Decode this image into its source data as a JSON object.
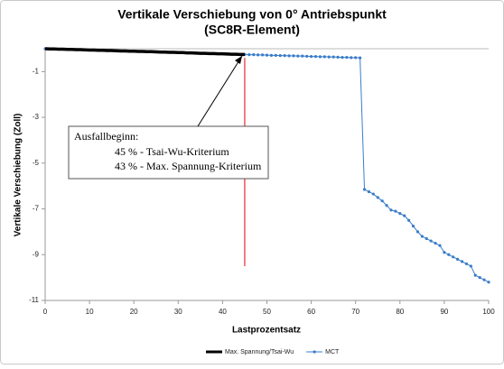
{
  "chart_data": {
    "type": "line",
    "title": "Vertikale Verschiebung von 0° Antriebspunkt",
    "subtitle": "(SC8R-Element)",
    "x_label": "Lastprozentsatz",
    "y_label": "Vertikale Verschiebung (Zoll)",
    "xlim": [
      0,
      100
    ],
    "xticks": [
      0,
      10,
      20,
      30,
      40,
      50,
      60,
      70,
      80,
      90,
      100
    ],
    "ylim": [
      -11,
      0
    ],
    "yticks": [
      -1,
      -3,
      -5,
      -7,
      -9,
      -11
    ],
    "legend": "bottom",
    "series": [
      {
        "name": "Max. Spannung/Tsai-Wu",
        "color": "#000000",
        "markers": false,
        "x": [
          0,
          1,
          2,
          3,
          4,
          5,
          6,
          7,
          8,
          9,
          10,
          11,
          12,
          13,
          14,
          15,
          16,
          17,
          18,
          19,
          20,
          21,
          22,
          23,
          24,
          25,
          26,
          27,
          28,
          29,
          30,
          31,
          32,
          33,
          34,
          35,
          36,
          37,
          38,
          39,
          40,
          41,
          42,
          43,
          44,
          45
        ],
        "values": [
          0,
          -0.01,
          -0.01,
          -0.02,
          -0.02,
          -0.03,
          -0.03,
          -0.04,
          -0.04,
          -0.05,
          -0.06,
          -0.06,
          -0.07,
          -0.07,
          -0.08,
          -0.08,
          -0.09,
          -0.1,
          -0.1,
          -0.11,
          -0.11,
          -0.12,
          -0.12,
          -0.13,
          -0.13,
          -0.14,
          -0.15,
          -0.15,
          -0.16,
          -0.16,
          -0.17,
          -0.17,
          -0.18,
          -0.18,
          -0.19,
          -0.2,
          -0.2,
          -0.21,
          -0.21,
          -0.22,
          -0.22,
          -0.23,
          -0.24,
          -0.24,
          -0.25,
          -0.25
        ]
      },
      {
        "name": "MCT",
        "color": "#3a7dc9",
        "markers": true,
        "x": [
          0,
          1,
          2,
          3,
          4,
          5,
          6,
          7,
          8,
          9,
          10,
          11,
          12,
          13,
          14,
          15,
          16,
          17,
          18,
          19,
          20,
          21,
          22,
          23,
          24,
          25,
          26,
          27,
          28,
          29,
          30,
          31,
          32,
          33,
          34,
          35,
          36,
          37,
          38,
          39,
          40,
          41,
          42,
          43,
          44,
          45,
          46,
          47,
          48,
          49,
          50,
          51,
          52,
          53,
          54,
          55,
          56,
          57,
          58,
          59,
          60,
          61,
          62,
          63,
          64,
          65,
          66,
          67,
          68,
          69,
          70,
          71,
          72,
          73,
          74,
          75,
          76,
          77,
          78,
          79,
          80,
          81,
          82,
          83,
          84,
          85,
          86,
          87,
          88,
          89,
          90,
          91,
          92,
          93,
          94,
          95,
          96,
          97,
          98,
          99,
          100
        ],
        "values": [
          0,
          -0.01,
          -0.01,
          -0.02,
          -0.02,
          -0.03,
          -0.03,
          -0.04,
          -0.04,
          -0.05,
          -0.06,
          -0.06,
          -0.07,
          -0.07,
          -0.08,
          -0.08,
          -0.09,
          -0.1,
          -0.1,
          -0.11,
          -0.11,
          -0.12,
          -0.12,
          -0.13,
          -0.13,
          -0.14,
          -0.15,
          -0.15,
          -0.16,
          -0.16,
          -0.17,
          -0.17,
          -0.18,
          -0.18,
          -0.19,
          -0.2,
          -0.2,
          -0.21,
          -0.21,
          -0.22,
          -0.22,
          -0.23,
          -0.24,
          -0.24,
          -0.25,
          -0.25,
          -0.26,
          -0.26,
          -0.27,
          -0.27,
          -0.28,
          -0.29,
          -0.29,
          -0.3,
          -0.3,
          -0.31,
          -0.31,
          -0.32,
          -0.32,
          -0.33,
          -0.34,
          -0.34,
          -0.35,
          -0.35,
          -0.36,
          -0.36,
          -0.37,
          -0.38,
          -0.38,
          -0.39,
          -0.39,
          -0.4,
          -6.15,
          -6.25,
          -6.35,
          -6.5,
          -6.65,
          -6.85,
          -7.05,
          -7.1,
          -7.2,
          -7.3,
          -7.5,
          -7.75,
          -8.0,
          -8.2,
          -8.3,
          -8.4,
          -8.5,
          -8.6,
          -8.9,
          -9.0,
          -9.1,
          -9.2,
          -9.3,
          -9.4,
          -9.5,
          -9.9,
          -10.0,
          -10.1,
          -10.2
        ]
      }
    ],
    "vline": {
      "x": 45,
      "y": [
        -0.4,
        -9.5
      ],
      "color": "#e8000b"
    },
    "annotation": {
      "title": "Ausfallbeginn:",
      "lines": [
        "45 % - Tsai-Wu-Kriterium",
        "43 % - Max. Spannung-Kriterium"
      ]
    }
  }
}
